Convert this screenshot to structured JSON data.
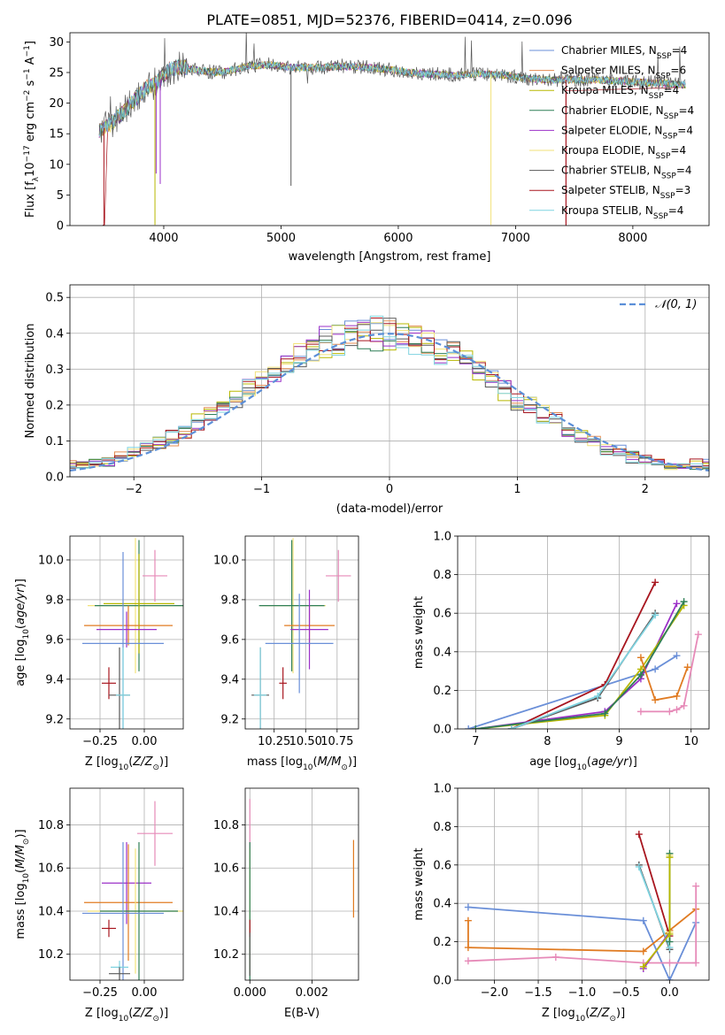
{
  "figure": {
    "title": "PLATE=0851, MJD=52376, FIBERID=0414, z=0.096",
    "colors": {
      "chabrier_miles": "#6a8fd8",
      "salpeter_miles": "#e48c52",
      "kroupa_miles": "#b8b800",
      "chabrier_elodie": "#2f7f56",
      "salpeter_elodie": "#9b30c8",
      "kroupa_elodie": "#f2e27a",
      "chabrier_stelib": "#585858",
      "salpeter_stelib": "#a8161f",
      "kroupa_stelib": "#7fd3e0",
      "pink": "#e68ab8",
      "orange": "#e07b22",
      "dashed_normal": "#5b8fd8"
    }
  },
  "chart_data": [
    {
      "id": "spectrum",
      "type": "line",
      "xlabel": "wavelength [Angstrom, rest frame]",
      "ylabel_parts": [
        "Flux [f",
        "λ",
        "10",
        "−17",
        " erg cm",
        "−2",
        " s",
        "−1",
        " A",
        "−1",
        "]"
      ],
      "xlim": [
        3200,
        8650
      ],
      "ylim": [
        0,
        31.5
      ],
      "xticks": [
        4000,
        5000,
        6000,
        7000,
        8000
      ],
      "yticks": [
        0,
        5,
        10,
        15,
        20,
        25,
        30
      ],
      "grid": false,
      "legend_position": "top-right",
      "legend": [
        {
          "base": "Chabrier MILES, N",
          "sub": "SSP",
          "tail": "=4",
          "color_key": "chabrier_miles"
        },
        {
          "base": "Salpeter MILES, N",
          "sub": "SSP",
          "tail": "=6",
          "color_key": "salpeter_miles"
        },
        {
          "base": "Kroupa MILES, N",
          "sub": "SSP",
          "tail": "=4",
          "color_key": "kroupa_miles"
        },
        {
          "base": "Chabrier ELODIE, N",
          "sub": "SSP",
          "tail": "=4",
          "color_key": "chabrier_elodie"
        },
        {
          "base": "Salpeter ELODIE, N",
          "sub": "SSP",
          "tail": "=4",
          "color_key": "salpeter_elodie"
        },
        {
          "base": "Kroupa ELODIE, N",
          "sub": "SSP",
          "tail": "=4",
          "color_key": "kroupa_elodie"
        },
        {
          "base": "Chabrier STELIB, N",
          "sub": "SSP",
          "tail": "=4",
          "color_key": "chabrier_stelib"
        },
        {
          "base": "Salpeter STELIB, N",
          "sub": "SSP",
          "tail": "=3",
          "color_key": "salpeter_stelib"
        },
        {
          "base": "Kroupa STELIB, N",
          "sub": "SSP",
          "tail": "=4",
          "color_key": "kroupa_stelib"
        }
      ],
      "continuum": {
        "x": [
          3450,
          3550,
          3650,
          3750,
          3850,
          3950,
          4050,
          4150,
          4300,
          4500,
          4700,
          4900,
          5100,
          5300,
          5500,
          5700,
          5900,
          6100,
          6300,
          6500,
          6700,
          6900,
          7100,
          7300,
          7500,
          7700,
          7900,
          8100,
          8300,
          8450
        ],
        "y": [
          15.5,
          16.5,
          18.5,
          20.5,
          22.5,
          23.5,
          25.5,
          26.0,
          25.3,
          25.0,
          26.0,
          26.3,
          25.8,
          25.8,
          26.0,
          25.9,
          25.5,
          25.0,
          24.7,
          24.6,
          24.8,
          24.6,
          24.0,
          23.8,
          23.8,
          23.8,
          23.6,
          23.4,
          23.2,
          23.0
        ]
      },
      "features": [
        {
          "x": 3490,
          "y": 0.1,
          "model": "salpeter_stelib"
        },
        {
          "x": 3925,
          "y": 0.1,
          "model": "kroupa_miles"
        },
        {
          "x": 3935,
          "y": 8.5,
          "model": "salpeter_elodie"
        },
        {
          "x": 3970,
          "y": 6.8,
          "model": "salpeter_elodie"
        },
        {
          "x": 5085,
          "y": 6.5,
          "model": "chabrier_stelib"
        },
        {
          "x": 6790,
          "y": 0.1,
          "model": "kroupa_elodie"
        },
        {
          "x": 7430,
          "y": 0.1,
          "model": "salpeter_stelib"
        }
      ]
    },
    {
      "id": "residuals",
      "type": "line",
      "xlabel": "(data-model)/error",
      "ylabel": "Normed distribution",
      "xlim": [
        -2.5,
        2.5
      ],
      "ylim": [
        0,
        0.535
      ],
      "xticks": [
        -2,
        -1,
        0,
        1,
        2
      ],
      "xtick_labels": [
        "−2",
        "−1",
        "0",
        "1",
        "2"
      ],
      "yticks": [
        0.0,
        0.1,
        0.2,
        0.3,
        0.4,
        0.5
      ],
      "grid": true,
      "legend_position": "top-right",
      "legend": [
        {
          "label": "𝒩(0, 1)",
          "color_key": "dashed_normal"
        }
      ],
      "bin_width": 0.1,
      "normal": {
        "mu": 0,
        "sigma": 1
      }
    },
    {
      "id": "age_vs_Z",
      "type": "scatter",
      "xlabel_parts": [
        "Z [log",
        "10",
        "(Z/Z",
        "⊙",
        ")]"
      ],
      "ylabel_parts": [
        "age  [log",
        "10",
        "(age/yr)]"
      ],
      "xlim": [
        -0.42,
        0.22
      ],
      "ylim": [
        9.15,
        10.12
      ],
      "xticks": [
        -0.25,
        0.0
      ],
      "xtick_labels": [
        "−0.25",
        "0.00"
      ],
      "yticks": [
        9.2,
        9.4,
        9.6,
        9.8,
        10.0
      ],
      "grid": true,
      "points": [
        {
          "x": 0.06,
          "y": 9.92,
          "xe": 0.07,
          "ye": 0.13,
          "color_key": "pink"
        },
        {
          "x": -0.05,
          "y": 9.77,
          "xe": 0.27,
          "ye": 0.34,
          "color_key": "kroupa_elodie"
        },
        {
          "x": -0.03,
          "y": 9.77,
          "xe": 0.25,
          "ye": 0.33,
          "color_key": "chabrier_elodie"
        },
        {
          "x": -0.03,
          "y": 9.78,
          "xe": 0.2,
          "ye": 0.25,
          "color_key": "kroupa_miles"
        },
        {
          "x": -0.09,
          "y": 9.67,
          "xe": 0.25,
          "ye": 0.1,
          "color_key": "orange"
        },
        {
          "x": -0.1,
          "y": 9.65,
          "xe": 0.17,
          "ye": 0.09,
          "color_key": "salpeter_elodie"
        },
        {
          "x": -0.12,
          "y": 9.58,
          "xe": 0.23,
          "ye": 0.46,
          "color_key": "chabrier_miles"
        },
        {
          "x": -0.2,
          "y": 9.38,
          "xe": 0.04,
          "ye": 0.08,
          "color_key": "salpeter_stelib"
        },
        {
          "x": -0.14,
          "y": 9.32,
          "xe": 0.06,
          "ye": 0.24,
          "color_key": "chabrier_stelib"
        },
        {
          "x": -0.12,
          "y": 9.32,
          "xe": 0.04,
          "ye": 0.24,
          "color_key": "kroupa_stelib"
        }
      ]
    },
    {
      "id": "age_vs_mass",
      "type": "scatter",
      "xlabel_parts": [
        "mass [log",
        "10",
        "(M/M",
        "⊙",
        ")]"
      ],
      "xlim": [
        10.02,
        10.92
      ],
      "ylim": [
        9.15,
        10.12
      ],
      "xticks": [
        10.25,
        10.5,
        10.75
      ],
      "xtick_labels": [
        "10.25",
        "10.50",
        "10.75"
      ],
      "yticks": [
        9.2,
        9.4,
        9.6,
        9.8,
        10.0
      ],
      "grid": true,
      "points": [
        {
          "x": 10.76,
          "y": 9.92,
          "xe": 0.1,
          "ye": 0.13,
          "color_key": "pink"
        },
        {
          "x": 10.4,
          "y": 9.77,
          "xe": 0.26,
          "ye": 0.34,
          "color_key": "kroupa_elodie"
        },
        {
          "x": 10.39,
          "y": 9.77,
          "xe": 0.26,
          "ye": 0.33,
          "color_key": "chabrier_elodie"
        },
        {
          "x": 10.53,
          "y": 9.67,
          "xe": 0.2,
          "ye": 0.1,
          "color_key": "orange"
        },
        {
          "x": 10.53,
          "y": 9.65,
          "xe": 0.15,
          "ye": 0.2,
          "color_key": "salpeter_elodie"
        },
        {
          "x": 10.45,
          "y": 9.58,
          "xe": 0.27,
          "ye": 0.25,
          "color_key": "chabrier_miles"
        },
        {
          "x": 10.32,
          "y": 9.38,
          "xe": 0.03,
          "ye": 0.08,
          "color_key": "salpeter_stelib"
        },
        {
          "x": 10.14,
          "y": 9.32,
          "xe": 0.07,
          "ye": 0.24,
          "color_key": "chabrier_stelib"
        },
        {
          "x": 10.14,
          "y": 9.32,
          "xe": 0.05,
          "ye": 0.24,
          "color_key": "kroupa_stelib"
        }
      ]
    },
    {
      "id": "weight_vs_age",
      "type": "line",
      "xlabel_parts": [
        "age  [log",
        "10",
        "(age/yr)]"
      ],
      "ylabel": "mass weight",
      "xlim": [
        6.75,
        10.25
      ],
      "ylim": [
        0,
        1.0
      ],
      "xticks": [
        7,
        8,
        9,
        10
      ],
      "yticks": [
        0.0,
        0.2,
        0.4,
        0.6,
        0.8,
        1.0
      ],
      "grid": true,
      "series": [
        {
          "color_key": "chabrier_miles",
          "x": [
            6.9,
            9.5,
            9.8
          ],
          "y": [
            0.0,
            0.31,
            0.38
          ]
        },
        {
          "color_key": "salpeter_stelib",
          "x": [
            7.5,
            8.8,
            9.5
          ],
          "y": [
            0.0,
            0.23,
            0.76
          ]
        },
        {
          "color_key": "salpeter_elodie",
          "x": [
            7.0,
            8.8,
            9.3,
            9.8
          ],
          "y": [
            0.0,
            0.09,
            0.26,
            0.65
          ]
        },
        {
          "color_key": "kroupa_miles",
          "x": [
            7.0,
            8.8,
            9.3,
            9.9
          ],
          "y": [
            0.0,
            0.07,
            0.31,
            0.64
          ]
        },
        {
          "color_key": "chabrier_elodie",
          "x": [
            7.0,
            8.8,
            9.3,
            9.9
          ],
          "y": [
            0.0,
            0.08,
            0.28,
            0.66
          ]
        },
        {
          "color_key": "chabrier_stelib",
          "x": [
            7.5,
            8.7,
            9.5
          ],
          "y": [
            0.0,
            0.16,
            0.6
          ]
        },
        {
          "color_key": "kroupa_stelib",
          "x": [
            7.5,
            8.7,
            9.5
          ],
          "y": [
            0.0,
            0.17,
            0.59
          ]
        },
        {
          "color_key": "orange",
          "x": [
            9.3,
            9.5,
            9.8,
            9.95
          ],
          "y": [
            0.37,
            0.15,
            0.17,
            0.32
          ]
        },
        {
          "color_key": "pink",
          "x": [
            9.3,
            9.7,
            9.8,
            9.9,
            10.1
          ],
          "y": [
            0.09,
            0.09,
            0.1,
            0.12,
            0.49
          ]
        }
      ]
    },
    {
      "id": "mass_vs_Z",
      "type": "scatter",
      "xlabel_parts": [
        "Z [log",
        "10",
        "(Z/Z",
        "⊙",
        ")]"
      ],
      "ylabel_parts": [
        "mass [log",
        "10",
        "(M/M",
        "⊙",
        ")]"
      ],
      "xlim": [
        -0.42,
        0.22
      ],
      "ylim": [
        10.08,
        10.97
      ],
      "xticks": [
        -0.25,
        0.0
      ],
      "xtick_labels": [
        "−0.25",
        "0.00"
      ],
      "yticks": [
        10.2,
        10.4,
        10.6,
        10.8
      ],
      "grid": true,
      "points": [
        {
          "x": 0.06,
          "y": 10.76,
          "xe": 0.1,
          "ye": 0.15,
          "color_key": "pink"
        },
        {
          "x": -0.1,
          "y": 10.53,
          "xe": 0.14,
          "ye": 0.19,
          "color_key": "salpeter_elodie"
        },
        {
          "x": -0.09,
          "y": 10.44,
          "xe": 0.25,
          "ye": 0.27,
          "color_key": "orange"
        },
        {
          "x": -0.05,
          "y": 10.4,
          "xe": 0.27,
          "ye": 0.29,
          "color_key": "kroupa_elodie"
        },
        {
          "x": -0.03,
          "y": 10.4,
          "xe": 0.22,
          "ye": 0.32,
          "color_key": "chabrier_elodie"
        },
        {
          "x": -0.12,
          "y": 10.39,
          "xe": 0.23,
          "ye": 0.33,
          "color_key": "chabrier_miles"
        },
        {
          "x": -0.2,
          "y": 10.32,
          "xe": 0.04,
          "ye": 0.04,
          "color_key": "salpeter_stelib"
        },
        {
          "x": -0.14,
          "y": 10.14,
          "xe": 0.05,
          "ye": 0.03,
          "color_key": "kroupa_stelib"
        },
        {
          "x": -0.14,
          "y": 10.11,
          "xe": 0.06,
          "ye": 0.03,
          "color_key": "chabrier_stelib"
        }
      ]
    },
    {
      "id": "mass_vs_ebv",
      "type": "scatter",
      "xlabel": "E(B-V)",
      "xlim": [
        -0.00015,
        0.0035
      ],
      "ylim": [
        10.08,
        10.97
      ],
      "xticks": [
        0.0,
        0.002
      ],
      "xtick_labels": [
        "0.000",
        "0.002"
      ],
      "yticks": [
        10.2,
        10.4,
        10.6,
        10.8
      ],
      "grid": true,
      "points": [
        {
          "x": 0.0,
          "y": 10.76,
          "xe": 0,
          "ye": 0.16,
          "color_key": "pink"
        },
        {
          "x": 0.0,
          "y": 10.4,
          "xe": 0,
          "ye": 0.29,
          "color_key": "kroupa_elodie"
        },
        {
          "x": 0.0,
          "y": 10.4,
          "xe": 0,
          "ye": 0.32,
          "color_key": "chabrier_elodie"
        },
        {
          "x": 0.0,
          "y": 10.32,
          "xe": 0,
          "ye": 0.04,
          "color_key": "salpeter_stelib"
        },
        {
          "x": 0.0,
          "y": 10.2,
          "xe": 0,
          "ye": 0.1,
          "color_key": "chabrier_stelib"
        },
        {
          "x": 0.00334,
          "y": 10.55,
          "xe": 0,
          "ye": 0.18,
          "color_key": "orange"
        }
      ]
    },
    {
      "id": "weight_vs_Z",
      "type": "line",
      "xlabel_parts": [
        "Z [log",
        "10",
        "(Z/Z",
        "⊙",
        ")]"
      ],
      "ylabel": "mass weight",
      "xlim": [
        -2.42,
        0.45
      ],
      "ylim": [
        0,
        1.0
      ],
      "xticks": [
        -2.0,
        -1.5,
        -1.0,
        -0.5,
        0.0
      ],
      "xtick_labels": [
        "−2.0",
        "−1.5",
        "−1.0",
        "−0.5",
        "0.0"
      ],
      "yticks": [
        0.0,
        0.2,
        0.4,
        0.6,
        0.8,
        1.0
      ],
      "grid": true,
      "series": [
        {
          "color_key": "chabrier_miles",
          "x": [
            -2.3,
            -0.3,
            0.0,
            0.3
          ],
          "y": [
            0.38,
            0.31,
            0.0,
            0.3
          ]
        },
        {
          "color_key": "orange",
          "x": [
            -2.3,
            -2.3,
            -0.3,
            0.0,
            0.3
          ],
          "y": [
            0.31,
            0.17,
            0.15,
            0.26,
            0.37
          ]
        },
        {
          "color_key": "pink",
          "x": [
            -2.3,
            -1.3,
            -0.3,
            0.0,
            0.3,
            0.3
          ],
          "y": [
            0.1,
            0.12,
            0.09,
            0.09,
            0.09,
            0.49
          ]
        },
        {
          "color_key": "salpeter_stelib",
          "x": [
            -0.35,
            0.0
          ],
          "y": [
            0.76,
            0.23
          ]
        },
        {
          "color_key": "chabrier_stelib",
          "x": [
            -0.35,
            0.0
          ],
          "y": [
            0.6,
            0.16
          ]
        },
        {
          "color_key": "kroupa_stelib",
          "x": [
            -0.35,
            0.0
          ],
          "y": [
            0.59,
            0.17
          ]
        },
        {
          "color_key": "salpeter_elodie",
          "x": [
            -0.3,
            0.0
          ],
          "y": [
            0.06,
            0.25
          ]
        },
        {
          "color_key": "kroupa_elodie",
          "x": [
            0.0,
            0.0
          ],
          "y": [
            0.65,
            0.25
          ]
        },
        {
          "color_key": "chabrier_elodie",
          "x": [
            0.0,
            0.0
          ],
          "y": [
            0.66,
            0.2
          ]
        },
        {
          "color_key": "kroupa_miles",
          "x": [
            -0.3,
            0.0,
            0.0
          ],
          "y": [
            0.07,
            0.24,
            0.64
          ]
        }
      ]
    }
  ]
}
